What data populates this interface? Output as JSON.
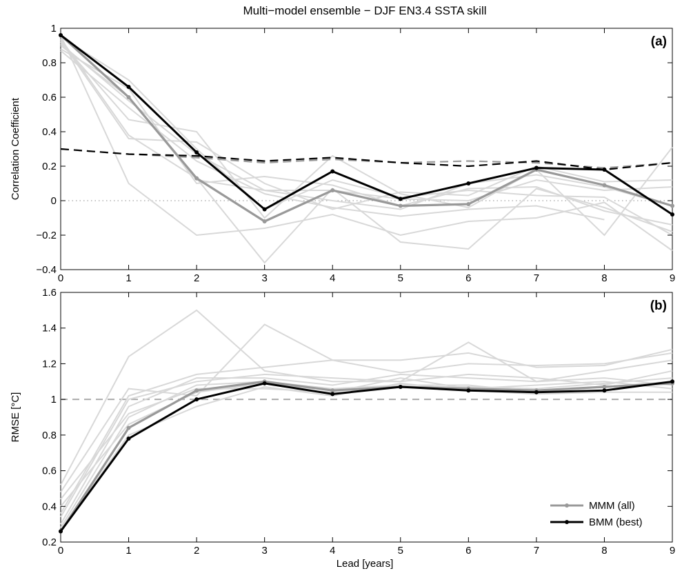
{
  "figure": {
    "title": "Multi−model ensemble − DJF EN3.4 SSTA skill",
    "xlabel": "Lead [years]"
  },
  "legend": {
    "placement": "bottom-right",
    "items": [
      {
        "label": "MMM (all)",
        "color": "#999999"
      },
      {
        "label": "BMM (best)",
        "color": "#000000"
      }
    ]
  },
  "chart_data": [
    {
      "type": "line",
      "panel_label": "(a)",
      "ylabel": "Correlation Coefficient",
      "xlim": [
        0,
        9
      ],
      "ylim": [
        -0.4,
        1
      ],
      "x_ticks": [
        "0",
        "1",
        "2",
        "3",
        "4",
        "5",
        "6",
        "7",
        "8",
        "9"
      ],
      "y_ticks": [
        "−0.4",
        "−0.2",
        "0",
        "0.2",
        "0.4",
        "0.6",
        "0.8",
        "1"
      ],
      "x": [
        0,
        1,
        2,
        3,
        4,
        5,
        6,
        7,
        8,
        9
      ],
      "grid": false,
      "reference_line": {
        "y": 0,
        "style": "dotted",
        "color": "#888888"
      },
      "background_series": [
        [
          0.96,
          0.1,
          -0.2,
          -0.16,
          -0.08,
          -0.2,
          -0.12,
          -0.1,
          -0.01,
          -0.29
        ],
        [
          0.94,
          0.38,
          0.13,
          -0.36,
          0.07,
          -0.24,
          -0.28,
          0.07,
          -0.04,
          -0.18
        ],
        [
          0.92,
          0.47,
          0.4,
          -0.1,
          0.26,
          0.04,
          -0.04,
          0.18,
          -0.2,
          0.31
        ],
        [
          0.9,
          0.6,
          0.12,
          0.06,
          0.06,
          0.01,
          0.0,
          0.12,
          0.06,
          0.08
        ],
        [
          0.93,
          0.36,
          0.34,
          0.1,
          -0.05,
          0.05,
          0.03,
          0.2,
          0.11,
          0.12
        ],
        [
          0.88,
          0.65,
          0.1,
          0.14,
          0.09,
          -0.03,
          0.07,
          0.08,
          -0.06,
          -0.14
        ],
        [
          0.87,
          0.54,
          0.23,
          0.04,
          -0.04,
          -0.09,
          -0.05,
          -0.03,
          -0.11,
          null
        ],
        [
          0.95,
          0.7,
          0.3,
          -0.05,
          0.12,
          0.02,
          0.06,
          0.03,
          0.02,
          -0.2
        ],
        [
          0.91,
          0.58,
          0.27,
          0.06,
          0.0,
          -0.05,
          0.1,
          0.15,
          0.08,
          -0.03
        ]
      ],
      "series": [
        {
          "name": "MMM (all)",
          "color": "#999999",
          "values": [
            0.96,
            0.6,
            0.13,
            -0.12,
            0.06,
            -0.03,
            -0.02,
            0.18,
            0.09,
            -0.03
          ]
        },
        {
          "name": "BMM (best)",
          "color": "#000000",
          "values": [
            0.96,
            0.66,
            0.28,
            -0.05,
            0.17,
            0.01,
            0.1,
            0.19,
            0.18,
            -0.08
          ]
        },
        {
          "color": "#999999",
          "dashed": true,
          "values": [
            0.3,
            0.27,
            0.25,
            0.22,
            0.24,
            0.22,
            0.23,
            0.22,
            0.19,
            0.22
          ]
        },
        {
          "color": "#000000",
          "dashed": true,
          "values": [
            0.3,
            0.27,
            0.26,
            0.23,
            0.25,
            0.22,
            0.2,
            0.23,
            0.18,
            0.22
          ]
        }
      ]
    },
    {
      "type": "line",
      "panel_label": "(b)",
      "ylabel": "RMSE [°C]",
      "xlim": [
        0,
        9
      ],
      "ylim": [
        0.2,
        1.6
      ],
      "x_ticks": [
        "0",
        "1",
        "2",
        "3",
        "4",
        "5",
        "6",
        "7",
        "8",
        "9"
      ],
      "y_ticks": [
        "0.2",
        "0.4",
        "0.6",
        "0.8",
        "1",
        "1.2",
        "1.4",
        "1.6"
      ],
      "x": [
        0,
        1,
        2,
        3,
        4,
        5,
        6,
        7,
        8,
        9
      ],
      "grid": false,
      "reference_line": {
        "y": 1.0,
        "style": "dashed",
        "color": "#aaaaaa"
      },
      "background_series": [
        [
          0.52,
          1.24,
          1.5,
          1.16,
          1.1,
          1.1,
          1.32,
          1.1,
          1.12,
          1.08
        ],
        [
          0.48,
          1.06,
          1.02,
          1.42,
          1.22,
          1.22,
          1.26,
          1.18,
          1.19,
          1.28
        ],
        [
          0.36,
          1.02,
          1.14,
          1.18,
          1.22,
          1.15,
          1.2,
          1.19,
          1.2,
          1.26
        ],
        [
          0.3,
          0.96,
          1.12,
          1.12,
          1.08,
          1.14,
          1.12,
          1.1,
          1.16,
          1.22
        ],
        [
          0.28,
          0.9,
          1.08,
          1.1,
          1.06,
          1.08,
          1.08,
          1.04,
          1.07,
          1.1
        ],
        [
          0.44,
          0.92,
          1.06,
          1.06,
          1.04,
          1.12,
          1.06,
          1.08,
          1.1,
          1.06
        ],
        [
          0.26,
          0.8,
          0.96,
          1.07,
          1.02,
          1.09,
          1.05,
          1.03,
          1.04,
          1.04
        ],
        [
          0.34,
          1.0,
          1.1,
          1.14,
          1.12,
          1.1,
          1.14,
          1.12,
          1.08,
          1.16
        ],
        [
          0.4,
          0.86,
          1.04,
          1.09,
          1.05,
          1.07,
          1.07,
          1.06,
          1.09,
          1.12
        ]
      ],
      "series": [
        {
          "name": "MMM (all)",
          "color": "#999999",
          "values": [
            0.26,
            0.84,
            1.05,
            1.1,
            1.05,
            1.07,
            1.06,
            1.05,
            1.07,
            1.09
          ]
        },
        {
          "name": "BMM (best)",
          "color": "#000000",
          "values": [
            0.26,
            0.78,
            1.0,
            1.09,
            1.03,
            1.07,
            1.05,
            1.04,
            1.05,
            1.1
          ]
        }
      ]
    }
  ]
}
